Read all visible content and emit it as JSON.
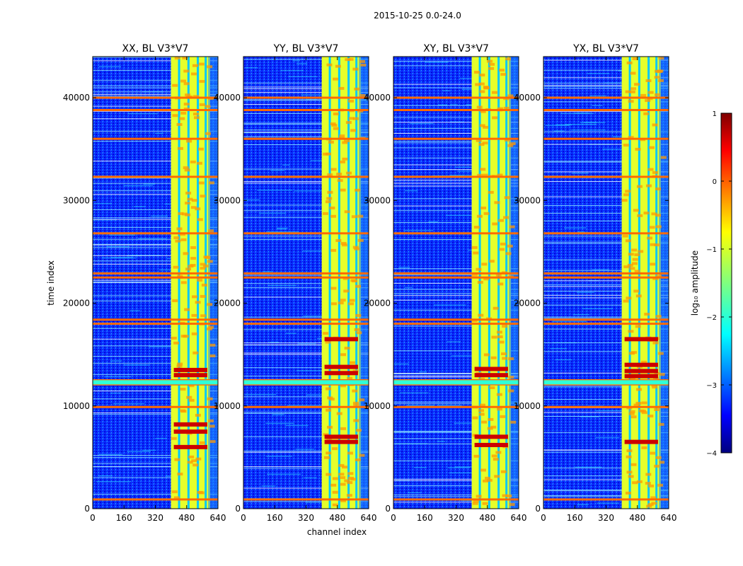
{
  "chart_data": {
    "type": "heatmap",
    "suptitle": "2015-10-25 0.0-24.0",
    "xlabel": "channel index",
    "ylabel": "time index",
    "xlim": [
      0,
      640
    ],
    "ylim": [
      0,
      44000
    ],
    "xticks": [
      0,
      160,
      320,
      480,
      640
    ],
    "yticks": [
      0,
      10000,
      20000,
      30000,
      40000
    ],
    "panels": [
      {
        "title": "XX, BL V3*V7",
        "band_start": 400,
        "band_end": 600,
        "red_rows": [
          13500,
          13000,
          8200,
          7500,
          6000
        ]
      },
      {
        "title": "YY, BL V3*V7",
        "band_start": 400,
        "band_end": 600,
        "red_rows": [
          13800,
          13200,
          16500,
          7000,
          6500
        ]
      },
      {
        "title": "XY, BL V3*V7",
        "band_start": 400,
        "band_end": 600,
        "red_rows": [
          13600,
          13000,
          7000,
          6200
        ]
      },
      {
        "title": "YX, BL V3*V7",
        "band_start": 400,
        "band_end": 600,
        "red_rows": [
          14000,
          13400,
          12900,
          16500,
          6500
        ]
      }
    ],
    "flag_rows": [
      900,
      9900,
      12100,
      12500,
      18000,
      18400,
      22500,
      22900,
      26800,
      32300,
      36000,
      38800,
      40000
    ],
    "colorbar": {
      "label": "log₁₀ amplitude",
      "range": [
        -4,
        1
      ],
      "ticks": [
        1,
        0,
        -1,
        -2,
        -3,
        -4
      ],
      "tick_labels": [
        "1",
        "0",
        "−1",
        "−2",
        "−3",
        "−4"
      ],
      "colormap": "jet"
    }
  }
}
